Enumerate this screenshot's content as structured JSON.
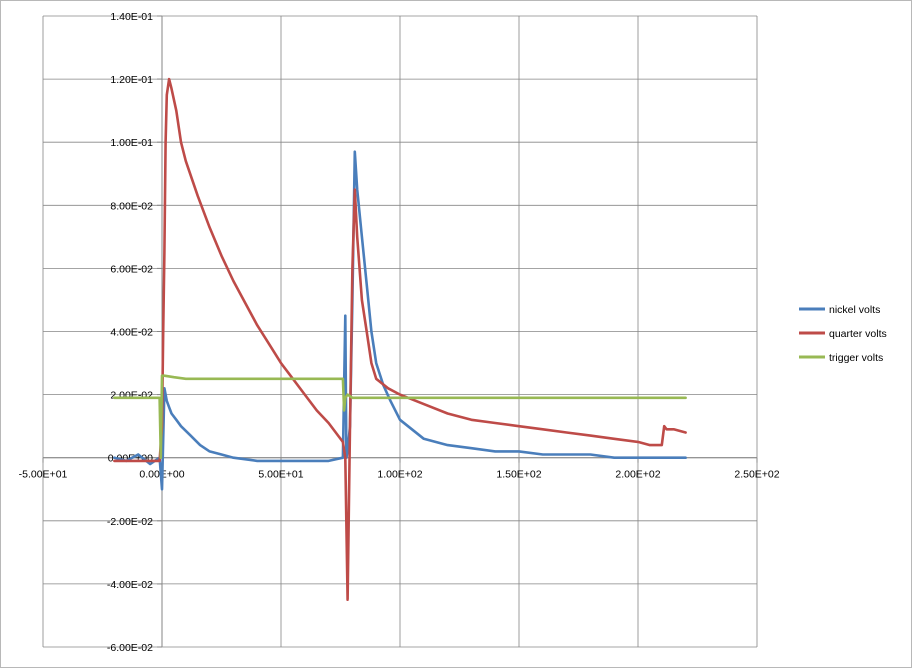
{
  "chart_data": {
    "type": "line",
    "title": "",
    "xlabel": "",
    "ylabel": "",
    "xlim": [
      -50,
      250
    ],
    "ylim": [
      -0.06,
      0.14
    ],
    "grid": true,
    "legend": "right",
    "x_ticks": [
      -50,
      0,
      50,
      100,
      150,
      200,
      250
    ],
    "x_tick_labels": [
      "-5.00E+01",
      "0.00E+00",
      "5.00E+01",
      "1.00E+02",
      "1.50E+02",
      "2.00E+02",
      "2.50E+02"
    ],
    "y_ticks": [
      -0.06,
      -0.04,
      -0.02,
      0,
      0.02,
      0.04,
      0.06,
      0.08,
      0.1,
      0.12,
      0.14
    ],
    "y_tick_labels": [
      "-6.00E-02",
      "-4.00E-02",
      "-2.00E-02",
      "0.00E+00",
      "2.00E-02",
      "4.00E-02",
      "6.00E-02",
      "8.00E-02",
      "1.00E-01",
      "1.20E-01",
      "1.40E-01"
    ],
    "series": [
      {
        "name": "nickel volts",
        "color": "#4a7ebb",
        "x": [
          -20,
          -15,
          -10,
          -5,
          -1,
          0,
          1,
          2,
          3,
          4,
          6,
          8,
          12,
          16,
          20,
          25,
          30,
          40,
          50,
          60,
          70,
          76,
          77,
          77.5,
          78,
          79,
          80,
          81,
          82,
          84,
          86,
          88,
          90,
          93,
          96,
          100,
          105,
          110,
          120,
          130,
          140,
          150,
          160,
          170,
          180,
          190,
          200,
          210,
          220
        ],
        "y": [
          0,
          -0.001,
          0.001,
          -0.002,
          0,
          -0.01,
          0.022,
          0.018,
          0.016,
          0.014,
          0.012,
          0.01,
          0.007,
          0.004,
          0.002,
          0.001,
          0,
          -0.001,
          -0.001,
          -0.001,
          -0.001,
          0,
          0.045,
          0,
          0.002,
          0.01,
          0.05,
          0.097,
          0.085,
          0.07,
          0.055,
          0.04,
          0.03,
          0.023,
          0.018,
          0.012,
          0.009,
          0.006,
          0.004,
          0.003,
          0.002,
          0.002,
          0.001,
          0.001,
          0.001,
          0,
          0,
          0,
          0
        ]
      },
      {
        "name": "quarter volts",
        "color": "#be4b48",
        "x": [
          -20,
          -10,
          -1,
          0,
          0.5,
          1,
          1.5,
          2,
          3,
          4,
          6,
          8,
          10,
          15,
          20,
          25,
          30,
          35,
          40,
          45,
          50,
          55,
          60,
          65,
          70,
          74,
          76,
          77,
          78,
          79,
          80,
          81,
          82,
          84,
          86,
          88,
          90,
          95,
          100,
          110,
          120,
          130,
          140,
          150,
          160,
          170,
          180,
          190,
          200,
          205,
          210,
          211,
          212,
          215,
          220
        ],
        "y": [
          -0.001,
          -0.001,
          -0.001,
          0.01,
          0.04,
          0.065,
          0.1,
          0.115,
          0.12,
          0.117,
          0.11,
          0.1,
          0.094,
          0.083,
          0.073,
          0.064,
          0.056,
          0.049,
          0.042,
          0.036,
          0.03,
          0.025,
          0.02,
          0.015,
          0.011,
          0.007,
          0.005,
          0,
          -0.045,
          0.01,
          0.06,
          0.085,
          0.07,
          0.05,
          0.04,
          0.03,
          0.025,
          0.022,
          0.02,
          0.017,
          0.014,
          0.012,
          0.011,
          0.01,
          0.009,
          0.008,
          0.007,
          0.006,
          0.005,
          0.004,
          0.004,
          0.01,
          0.009,
          0.009,
          0.008
        ]
      },
      {
        "name": "trigger volts",
        "color": "#98b954",
        "x": [
          -20,
          -1,
          -0.5,
          0,
          1,
          5,
          10,
          20,
          30,
          40,
          50,
          60,
          70,
          76,
          76.5,
          77,
          78,
          80,
          100,
          150,
          200,
          220
        ],
        "y": [
          0.019,
          0.019,
          0,
          0.026,
          0.026,
          0.0255,
          0.025,
          0.025,
          0.025,
          0.025,
          0.025,
          0.025,
          0.025,
          0.025,
          0.015,
          0.019,
          0.02,
          0.019,
          0.019,
          0.019,
          0.019,
          0.019
        ]
      }
    ]
  }
}
